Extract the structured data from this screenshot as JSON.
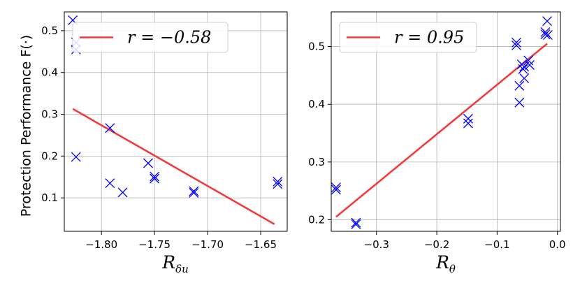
{
  "ylabel": "Protection Performance F(·)",
  "chart_data": [
    {
      "type": "scatter",
      "xlabel": "R",
      "xlabel_subscript": "δu",
      "ylabel": "Protection Performance F(·)",
      "xlim": [
        -1.835,
        -1.625
      ],
      "ylim": [
        0.02,
        0.545
      ],
      "xticks": [
        -1.8,
        -1.75,
        -1.7,
        -1.65
      ],
      "xtick_labels": [
        "−1.80",
        "−1.75",
        "−1.70",
        "−1.65"
      ],
      "yticks": [
        0.1,
        0.2,
        0.3,
        0.4,
        0.5
      ],
      "ytick_labels": [
        "0.1",
        "0.2",
        "0.3",
        "0.4",
        "0.5"
      ],
      "grid": true,
      "marker_color": "#0000ff",
      "points": [
        {
          "x": -1.827,
          "y": 0.525
        },
        {
          "x": -1.824,
          "y": 0.472
        },
        {
          "x": -1.824,
          "y": 0.455
        },
        {
          "x": -1.824,
          "y": 0.198
        },
        {
          "x": -1.792,
          "y": 0.267
        },
        {
          "x": -1.792,
          "y": 0.135
        },
        {
          "x": -1.78,
          "y": 0.113
        },
        {
          "x": -1.756,
          "y": 0.183
        },
        {
          "x": -1.75,
          "y": 0.151
        },
        {
          "x": -1.75,
          "y": 0.146
        },
        {
          "x": -1.713,
          "y": 0.116
        },
        {
          "x": -1.713,
          "y": 0.112
        },
        {
          "x": -1.634,
          "y": 0.139
        },
        {
          "x": -1.634,
          "y": 0.133
        }
      ],
      "fit_line": {
        "x": [
          -1.827,
          -1.637
        ],
        "y": [
          0.313,
          0.037
        ],
        "color": "#f03c3c"
      },
      "legend": {
        "label": "r = −0.58",
        "placement": "top-right"
      }
    },
    {
      "type": "scatter",
      "xlabel": "R",
      "xlabel_subscript": "θ",
      "xlim": [
        -0.375,
        0.005
      ],
      "ylim": [
        0.18,
        0.56
      ],
      "xticks": [
        -0.3,
        -0.2,
        -0.1,
        0.0
      ],
      "xtick_labels": [
        "−0.3",
        "−0.2",
        "−0.1",
        "0.0"
      ],
      "yticks": [
        0.2,
        0.3,
        0.4,
        0.5
      ],
      "ytick_labels": [
        "0.2",
        "0.3",
        "0.4",
        "0.5"
      ],
      "grid": true,
      "marker_color": "#0000ff",
      "points": [
        {
          "x": -0.367,
          "y": 0.256
        },
        {
          "x": -0.367,
          "y": 0.252
        },
        {
          "x": -0.334,
          "y": 0.195
        },
        {
          "x": -0.334,
          "y": 0.192
        },
        {
          "x": -0.148,
          "y": 0.375
        },
        {
          "x": -0.148,
          "y": 0.367
        },
        {
          "x": -0.068,
          "y": 0.507
        },
        {
          "x": -0.068,
          "y": 0.502
        },
        {
          "x": -0.063,
          "y": 0.432
        },
        {
          "x": -0.063,
          "y": 0.403
        },
        {
          "x": -0.059,
          "y": 0.469
        },
        {
          "x": -0.057,
          "y": 0.461
        },
        {
          "x": -0.055,
          "y": 0.465
        },
        {
          "x": -0.055,
          "y": 0.445
        },
        {
          "x": -0.048,
          "y": 0.476
        },
        {
          "x": -0.046,
          "y": 0.468
        },
        {
          "x": -0.02,
          "y": 0.525
        },
        {
          "x": -0.02,
          "y": 0.521
        },
        {
          "x": -0.017,
          "y": 0.544
        },
        {
          "x": -0.016,
          "y": 0.52
        }
      ],
      "fit_line": {
        "x": [
          -0.367,
          -0.017
        ],
        "y": [
          0.205,
          0.505
        ],
        "color": "#f03c3c"
      },
      "legend": {
        "label": "r = 0.95",
        "placement": "top-left"
      }
    }
  ]
}
